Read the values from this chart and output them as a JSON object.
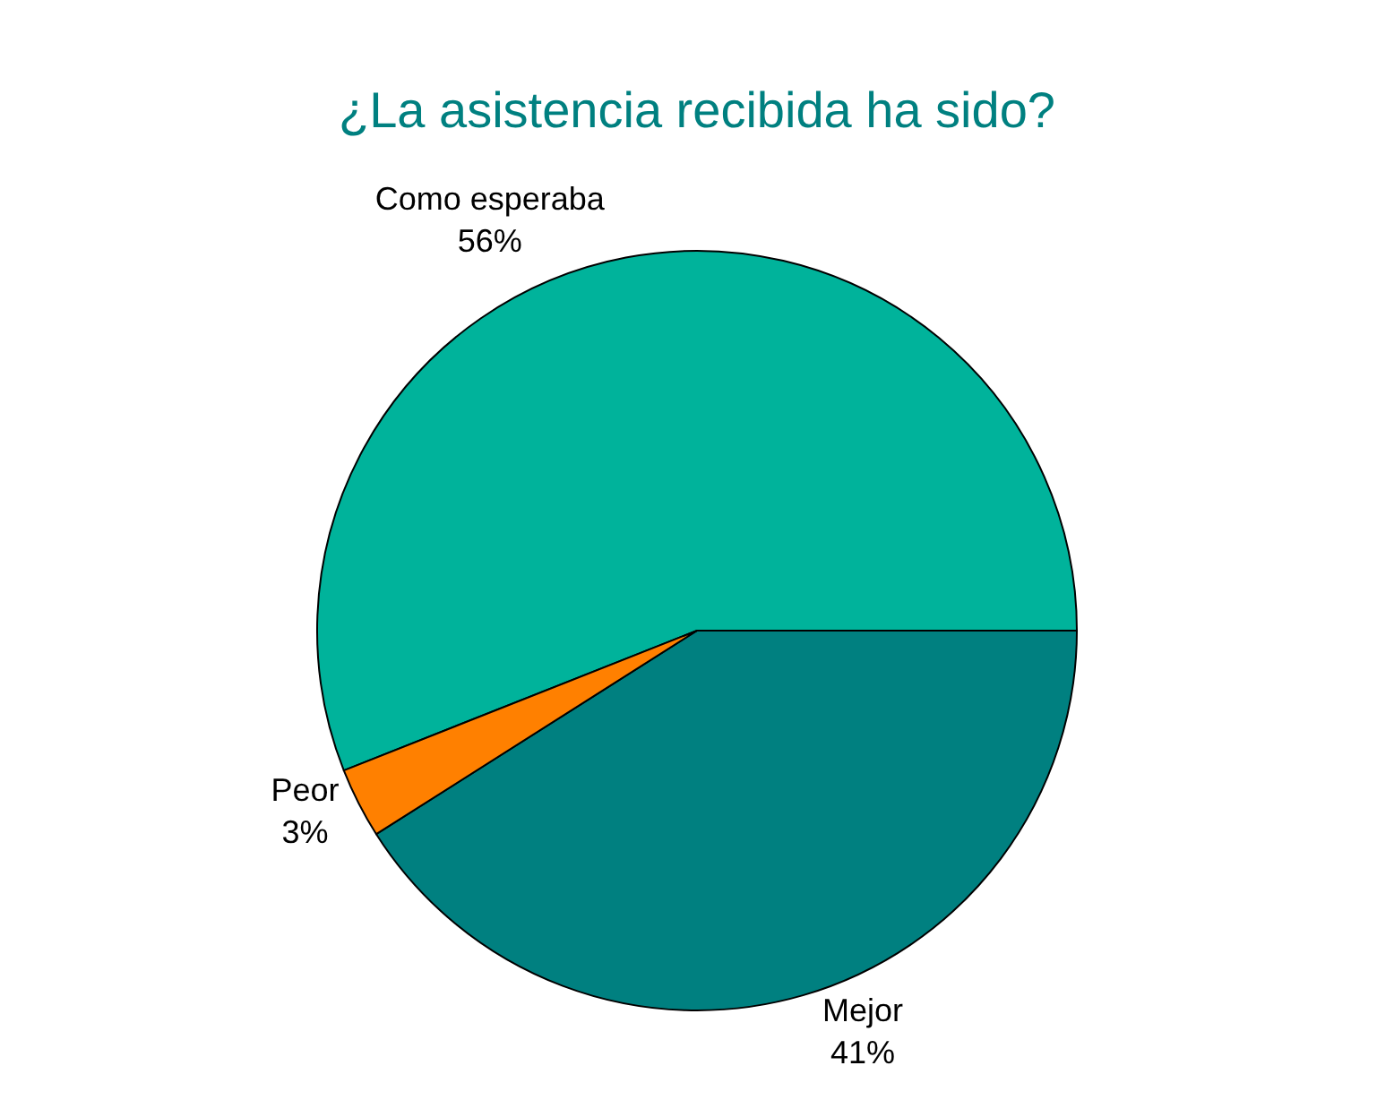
{
  "chart_data": {
    "type": "pie",
    "title": "¿La asistencia recibida ha sido?",
    "categories": [
      "Mejor",
      "Como esperaba",
      "Peor"
    ],
    "values": [
      41,
      56,
      3
    ],
    "value_labels": [
      "41%",
      "56%",
      "3%"
    ],
    "colors": [
      "#008080",
      "#00b39b",
      "#ff8000"
    ],
    "legend": false
  }
}
